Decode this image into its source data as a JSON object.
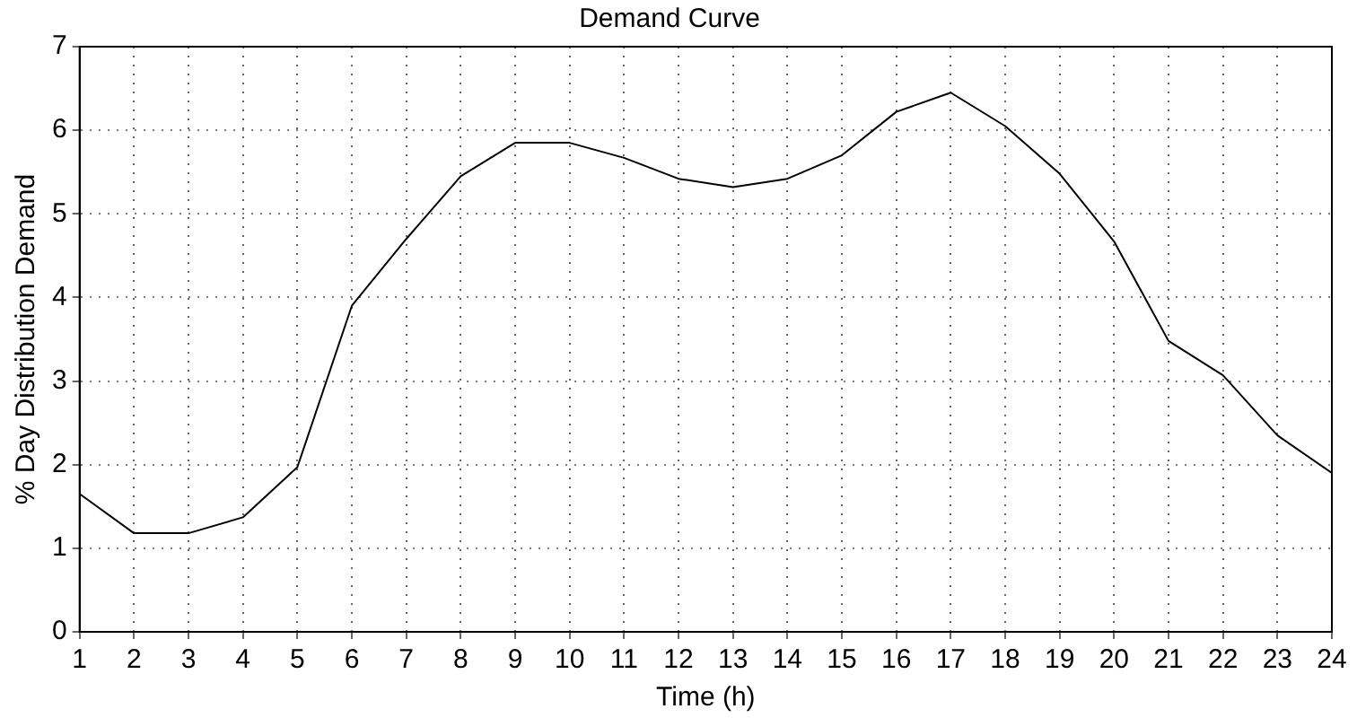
{
  "chart_data": {
    "type": "line",
    "title": "Demand Curve",
    "xlabel": "Time (h)",
    "ylabel": "% Day Distribution Demand",
    "x": [
      1,
      2,
      3,
      4,
      5,
      6,
      7,
      8,
      9,
      10,
      11,
      12,
      13,
      14,
      15,
      16,
      17,
      18,
      19,
      20,
      21,
      22,
      23,
      24
    ],
    "series": [
      {
        "color": "#000000",
        "values": [
          1.65,
          1.18,
          1.18,
          1.37,
          1.97,
          3.9,
          4.7,
          5.45,
          5.85,
          5.85,
          5.67,
          5.42,
          5.32,
          5.42,
          5.7,
          6.22,
          6.45,
          6.05,
          5.48,
          4.67,
          3.48,
          3.07,
          2.35,
          1.9
        ]
      }
    ],
    "xlim": [
      1,
      24
    ],
    "xticks": [
      1,
      2,
      3,
      4,
      5,
      6,
      7,
      8,
      9,
      10,
      11,
      12,
      13,
      14,
      15,
      16,
      17,
      18,
      19,
      20,
      21,
      22,
      23,
      24
    ],
    "ylim": [
      0,
      7
    ],
    "yticks": [
      0,
      1,
      2,
      3,
      4,
      5,
      6,
      7
    ],
    "grid": true,
    "legend": false,
    "marker": "none",
    "line_style": "solid"
  }
}
